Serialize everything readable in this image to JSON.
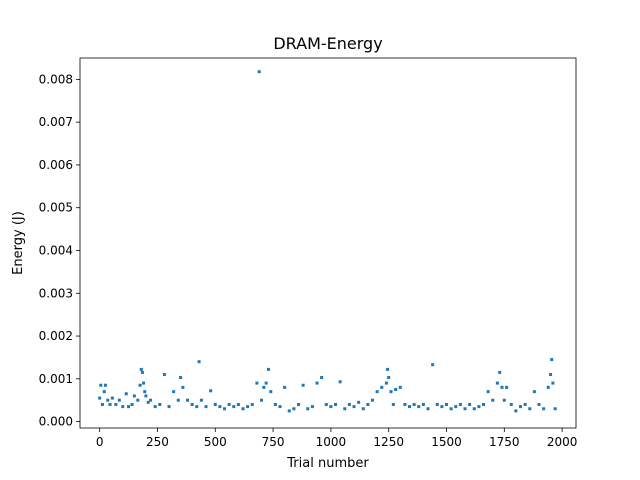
{
  "chart_data": {
    "type": "scatter",
    "title": "DRAM-Energy",
    "xlabel": "Trial number",
    "ylabel": "Energy (J)",
    "xlim": [
      -85,
      2060
    ],
    "ylim": [
      -0.00015,
      0.0085
    ],
    "x_ticks": [
      0,
      250,
      500,
      750,
      1000,
      1250,
      1500,
      1750,
      2000
    ],
    "x_tick_labels": [
      "0",
      "250",
      "500",
      "750",
      "1000",
      "1250",
      "1500",
      "1750",
      "2000"
    ],
    "y_ticks": [
      0.0,
      0.001,
      0.002,
      0.003,
      0.004,
      0.005,
      0.006,
      0.007,
      0.008
    ],
    "y_tick_labels": [
      "0.000",
      "0.001",
      "0.002",
      "0.003",
      "0.004",
      "0.005",
      "0.006",
      "0.007",
      "0.008"
    ],
    "grid": false,
    "legend": "none",
    "marker_color": "#1f77b4",
    "series": [
      {
        "x": [
          0,
          5,
          12,
          20,
          25,
          35,
          45,
          55,
          70,
          85,
          100,
          115,
          125,
          140,
          150,
          165,
          175,
          180,
          185,
          190,
          195,
          200,
          210,
          220,
          240,
          260,
          280,
          300,
          320,
          340,
          350,
          360,
          380,
          400,
          420,
          430,
          440,
          460,
          480,
          500,
          520,
          540,
          560,
          580,
          600,
          620,
          640,
          660,
          680,
          690,
          700,
          710,
          720,
          730,
          740,
          760,
          780,
          800,
          820,
          840,
          860,
          880,
          900,
          920,
          940,
          960,
          980,
          1000,
          1020,
          1040,
          1060,
          1080,
          1100,
          1120,
          1140,
          1160,
          1180,
          1200,
          1220,
          1240,
          1245,
          1250,
          1260,
          1270,
          1280,
          1300,
          1320,
          1340,
          1360,
          1380,
          1400,
          1420,
          1440,
          1460,
          1480,
          1500,
          1520,
          1540,
          1560,
          1580,
          1600,
          1620,
          1640,
          1660,
          1680,
          1700,
          1720,
          1730,
          1740,
          1750,
          1760,
          1780,
          1800,
          1820,
          1840,
          1860,
          1880,
          1900,
          1920,
          1940,
          1950,
          1955,
          1960,
          1970
        ],
        "y": [
          0.00055,
          0.00085,
          0.0004,
          0.0007,
          0.00085,
          0.0005,
          0.0004,
          0.00055,
          0.0004,
          0.0005,
          0.00035,
          0.00065,
          0.00035,
          0.0004,
          0.0006,
          0.0005,
          0.00085,
          0.00122,
          0.00115,
          0.0009,
          0.0007,
          0.0006,
          0.00045,
          0.0005,
          0.00035,
          0.0004,
          0.0011,
          0.00035,
          0.0007,
          0.0005,
          0.00103,
          0.0008,
          0.0005,
          0.0004,
          0.00035,
          0.0014,
          0.0005,
          0.00035,
          0.00072,
          0.0004,
          0.00035,
          0.0003,
          0.0004,
          0.00035,
          0.0004,
          0.0003,
          0.00035,
          0.0004,
          0.0009,
          0.00818,
          0.0005,
          0.0008,
          0.0009,
          0.00122,
          0.0007,
          0.0004,
          0.00035,
          0.0008,
          0.00025,
          0.0003,
          0.0004,
          0.00085,
          0.0003,
          0.00035,
          0.0009,
          0.00103,
          0.0004,
          0.00035,
          0.0004,
          0.00093,
          0.0003,
          0.0004,
          0.00035,
          0.00045,
          0.0003,
          0.0004,
          0.0005,
          0.0007,
          0.0008,
          0.0009,
          0.00122,
          0.00103,
          0.0007,
          0.0004,
          0.00075,
          0.0008,
          0.0004,
          0.00035,
          0.0004,
          0.00035,
          0.0004,
          0.0003,
          0.00133,
          0.0004,
          0.00035,
          0.0004,
          0.0003,
          0.00035,
          0.0004,
          0.0003,
          0.0004,
          0.0003,
          0.00035,
          0.0004,
          0.0007,
          0.0005,
          0.0009,
          0.00115,
          0.0008,
          0.0005,
          0.0008,
          0.0004,
          0.00025,
          0.00035,
          0.0004,
          0.0003,
          0.0007,
          0.0004,
          0.0003,
          0.0008,
          0.0011,
          0.00145,
          0.0009,
          0.0003
        ]
      }
    ]
  }
}
